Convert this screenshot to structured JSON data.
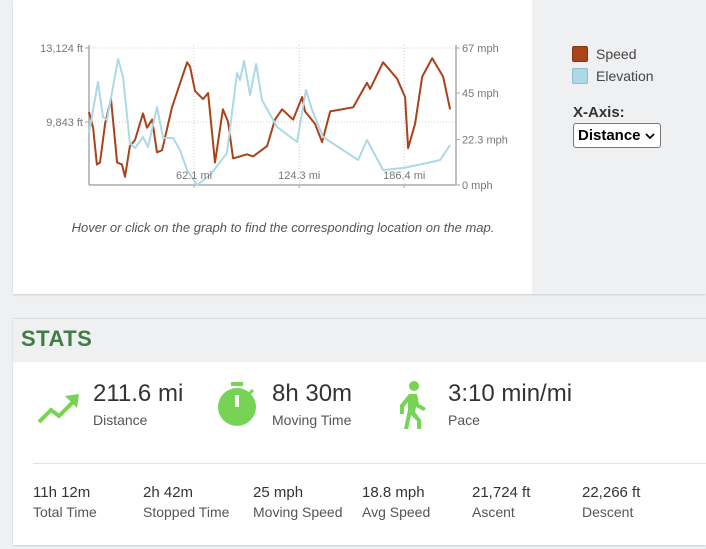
{
  "chart_data": {
    "type": "line",
    "xlabel_ticks": [
      "62.1 mi",
      "124.3 mi",
      "186.4 mi"
    ],
    "x_tick_values": [
      62.1,
      124.3,
      186.4
    ],
    "xlim": [
      0,
      217
    ],
    "left_axis": {
      "ticks": [
        "13,124 ft",
        "9,843 ft"
      ],
      "tick_values": [
        13124,
        9843
      ],
      "ylim": [
        7050,
        13124
      ]
    },
    "right_axis": {
      "ticks": [
        "67 mph",
        "45 mph",
        "22.3 mph",
        "0 mph"
      ],
      "tick_values": [
        67,
        45,
        22.3,
        0
      ],
      "ylim": [
        0,
        67
      ]
    },
    "grid": true,
    "series": [
      {
        "name": "Speed",
        "axis": "right",
        "color": "#a8431a",
        "x": [
          0,
          2.4,
          4.7,
          6.5,
          9.5,
          13,
          16.6,
          19.5,
          21.3,
          24.2,
          27.2,
          31.9,
          34.3,
          37.3,
          40.2,
          43.2,
          49.1,
          58,
          59.7,
          62.7,
          67.4,
          70.4,
          74.5,
          79.2,
          82.2,
          85.2,
          93.4,
          97,
          105.3,
          110,
          114.2,
          120.7,
          126,
          127.7,
          133.6,
          137.8,
          142.6,
          156.2,
          164.4,
          166.2,
          173.9,
          182.2,
          186.9,
          188.7,
          192.8,
          197,
          202.9,
          209.4,
          213.5
        ],
        "y": [
          35.7,
          28,
          10,
          11,
          30,
          42,
          11,
          10,
          4,
          19,
          22,
          35,
          28,
          32,
          16,
          17,
          38,
          60,
          58,
          46,
          42,
          45,
          11,
          37,
          31,
          13,
          15,
          14,
          19,
          32,
          37,
          32,
          43,
          36,
          30,
          21,
          36,
          38,
          50,
          47,
          60,
          52,
          43,
          18,
          30,
          53,
          62,
          53,
          37
        ]
      },
      {
        "name": "Elevation",
        "axis": "left",
        "color": "#add8e6",
        "x": [
          0,
          5.3,
          8.3,
          10.6,
          17.2,
          20.1,
          24.2,
          27.2,
          31.9,
          34.9,
          40.2,
          43.8,
          49.7,
          53.8,
          58,
          63.9,
          71.6,
          81.6,
          87.5,
          89.3,
          91.7,
          95.2,
          98.8,
          102.3,
          111.2,
          123,
          128.3,
          131.9,
          138.4,
          159.1,
          164.4,
          173.9,
          185.7,
          199.9,
          207.6,
          213.5
        ],
        "y": [
          9355,
          11617,
          10065,
          9932,
          12636,
          11838,
          8912,
          8690,
          9178,
          8735,
          10508,
          9134,
          9134,
          8602,
          7715,
          7050,
          7493,
          8468,
          12015,
          11705,
          12548,
          11040,
          12415,
          10818,
          9621,
          8956,
          11262,
          10375,
          9178,
          8158,
          9045,
          7715,
          7803,
          8025,
          8158,
          8823
        ]
      }
    ]
  },
  "chart_hint": "Hover or click on the graph to find the corresponding location on the map.",
  "legend": {
    "items": [
      {
        "label": "Speed",
        "color": "#a8431a"
      },
      {
        "label": "Elevation",
        "color": "#add8e6"
      }
    ]
  },
  "xaxis": {
    "label": "X-Axis:",
    "selected": "Distance"
  },
  "stats": {
    "title": "STATS",
    "accent": "#77d353",
    "main": [
      {
        "icon": "trending-up-icon",
        "value": "211.6 mi",
        "label": "Distance"
      },
      {
        "icon": "stopwatch-icon",
        "value": "8h 30m",
        "label": "Moving Time"
      },
      {
        "icon": "walking-icon",
        "value": "3:10 min/mi",
        "label": "Pace"
      }
    ],
    "secondary": [
      {
        "value": "11h 12m",
        "label": "Total Time"
      },
      {
        "value": "2h 42m",
        "label": "Stopped Time"
      },
      {
        "value": "25 mph",
        "label": "Moving Speed"
      },
      {
        "value": "18.8 mph",
        "label": "Avg Speed"
      },
      {
        "value": "21,724 ft",
        "label": "Ascent"
      },
      {
        "value": "22,266 ft",
        "label": "Descent"
      }
    ]
  }
}
